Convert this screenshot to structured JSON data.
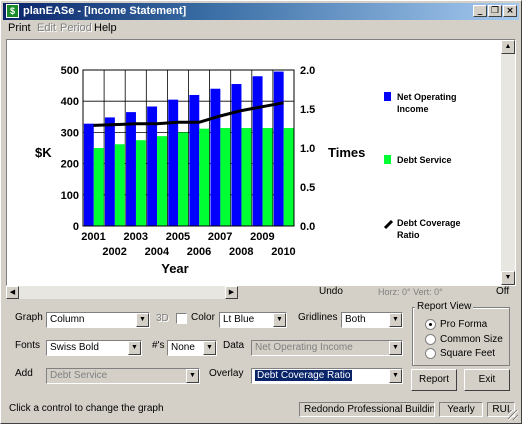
{
  "window": {
    "title": "planEASe - [Income Statement]",
    "app_icon_glyph": "$",
    "minimize_glyph": "_",
    "restore_glyph": "❐",
    "close_glyph": "×"
  },
  "menu": [
    {
      "label": "Print",
      "enabled": true
    },
    {
      "label": "Edit",
      "enabled": false
    },
    {
      "label": "Period",
      "enabled": false
    },
    {
      "label": "Help",
      "enabled": true
    }
  ],
  "chart_data": {
    "type": "bar",
    "categories": [
      "2001",
      "2002",
      "2003",
      "2004",
      "2005",
      "2006",
      "2007",
      "2008",
      "2009",
      "2010"
    ],
    "series": [
      {
        "name": "Net Operating Income",
        "color": "#0000ff",
        "axis": "left",
        "values": [
          328,
          348,
          365,
          383,
          405,
          420,
          440,
          455,
          480,
          495
        ]
      },
      {
        "name": "Debt Service",
        "color": "#00ff33",
        "axis": "left",
        "values": [
          250,
          262,
          275,
          288,
          300,
          312,
          314,
          314,
          314,
          314
        ]
      },
      {
        "name": "Debt Coverage Ratio",
        "type": "line",
        "color": "#000000",
        "axis": "right",
        "values": [
          1.29,
          1.3,
          1.31,
          1.31,
          1.33,
          1.33,
          1.41,
          1.48,
          1.53,
          1.58
        ]
      }
    ],
    "ylabel_left": "$K",
    "ylabel_right": "Times",
    "xlabel": "Year",
    "yticks_left": [
      "500",
      "400",
      "300",
      "200",
      "100",
      "0"
    ],
    "yticks_right": [
      "2.0",
      "1.5",
      "1.0",
      "0.5",
      "0.0"
    ],
    "ylim_left": [
      0,
      500
    ],
    "ylim_right": [
      0,
      2.0
    ],
    "grid": "both",
    "legend_position": "right"
  },
  "hbar": {
    "undo_label": "Undo",
    "coords_label": "Horz: 0° Vert: 0°",
    "off_label": "Off",
    "left_arrow": "◀",
    "right_arrow": "▶",
    "up_arrow": "▲",
    "down_arrow": "▼"
  },
  "controls": {
    "graph_label": "Graph",
    "graph_value": "Column",
    "threed_label": "3D",
    "color_label": "Color",
    "color_value": "Lt Blue",
    "gridlines_label": "Gridlines",
    "gridlines_value": "Both",
    "fonts_label": "Fonts",
    "fonts_value": "Swiss Bold",
    "numbers_label": "#'s",
    "numbers_value": "None",
    "data_label": "Data",
    "data_value": "Net Operating Income",
    "add_label": "Add",
    "add_value": "Debt Service",
    "overlay_label": "Overlay",
    "overlay_value": "Debt Coverage Ratio",
    "dropdown_arrow": "▼"
  },
  "report_view": {
    "title": "Report View",
    "options": [
      {
        "label": "Pro Forma",
        "selected": true
      },
      {
        "label": "Common Size",
        "selected": false
      },
      {
        "label": "Square Feet",
        "selected": false
      }
    ]
  },
  "buttons": {
    "report": "Report",
    "exit": "Exit"
  },
  "status": {
    "message": "Click a control to change the graph",
    "property": "Redondo Professional Building",
    "period": "Yearly",
    "units": "RUI"
  }
}
